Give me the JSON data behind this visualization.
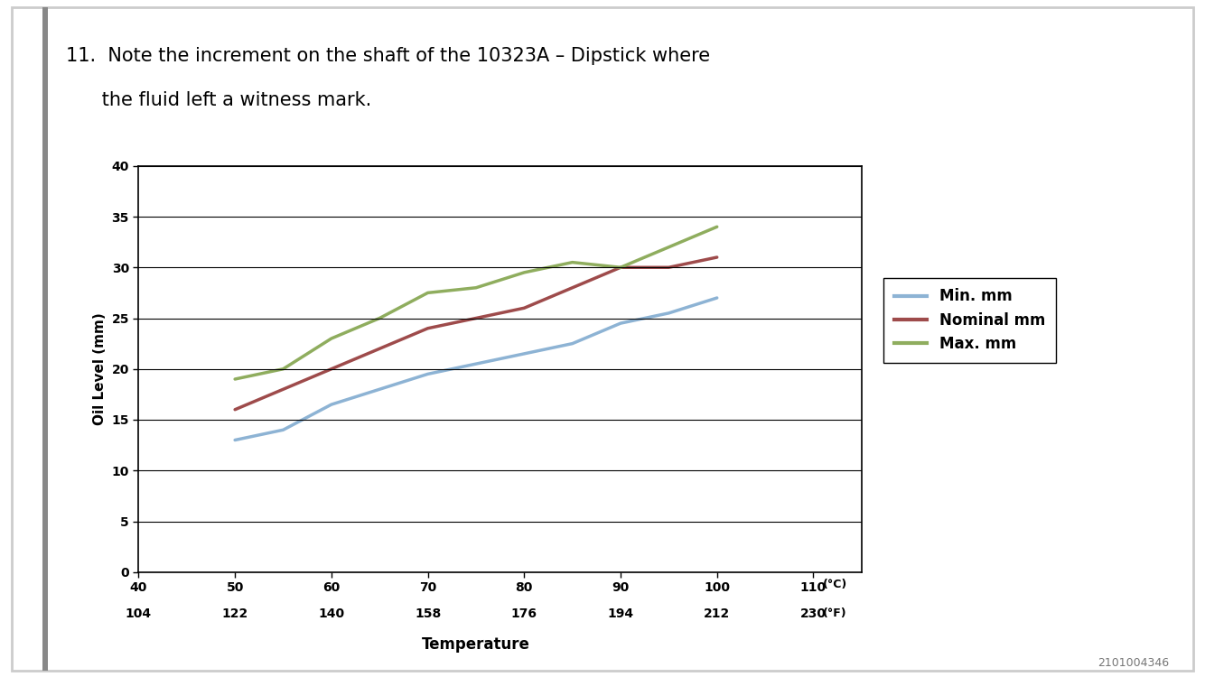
{
  "title_line1": "11.  Note the increment on the shaft of the 10323A – Dipstick where",
  "title_line2": "      the fluid left a witness mark.",
  "xlabel": "Temperature",
  "ylabel": "Oil Level (mm)",
  "xlim": [
    40,
    115
  ],
  "ylim": [
    0,
    40
  ],
  "xticks_celsius": [
    40,
    50,
    60,
    70,
    80,
    90,
    100,
    110
  ],
  "xticks_fahrenheit": [
    104,
    122,
    140,
    158,
    176,
    194,
    212,
    230
  ],
  "yticks": [
    0,
    5,
    10,
    15,
    20,
    25,
    30,
    35,
    40
  ],
  "min_x": [
    50,
    55,
    60,
    65,
    70,
    75,
    80,
    85,
    90,
    95,
    100
  ],
  "min_y": [
    13,
    14,
    16.5,
    18,
    19.5,
    20.5,
    21.5,
    22.5,
    24.5,
    25.5,
    27
  ],
  "nom_x": [
    50,
    55,
    60,
    65,
    70,
    75,
    80,
    85,
    90,
    95,
    100
  ],
  "nom_y": [
    16,
    18,
    20,
    22,
    24,
    25,
    26,
    28,
    30,
    30,
    31
  ],
  "max_x": [
    50,
    55,
    60,
    65,
    70,
    75,
    80,
    85,
    90,
    95,
    100
  ],
  "max_y": [
    19,
    20,
    23,
    25,
    27.5,
    28,
    29.5,
    30.5,
    30,
    32,
    34
  ],
  "min_color": "#8db3d4",
  "nom_color": "#9e4b4b",
  "max_color": "#8fad5e",
  "line_width": 2.5,
  "legend_labels": [
    "Min. mm",
    "Nominal mm",
    "Max. mm"
  ],
  "background_color": "#ffffff",
  "page_border_color": "#cccccc",
  "watermark": "2101004346",
  "title_fontsize": 15,
  "axis_label_fontsize": 11,
  "tick_fontsize": 10
}
